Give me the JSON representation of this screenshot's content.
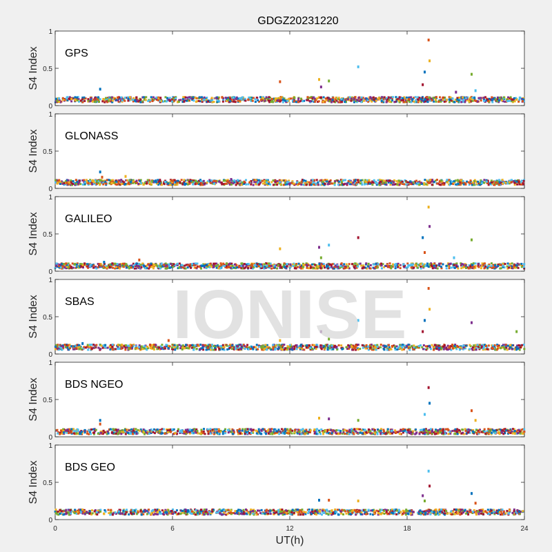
{
  "title": "GDGZ20231220",
  "watermark": "IONISE",
  "chart_data": {
    "type": "scatter",
    "xlabel": "UT(h)",
    "ylabel": "S4 Index",
    "xlim": [
      0,
      24
    ],
    "ylim": [
      0,
      1
    ],
    "xticks": [
      0,
      6,
      12,
      18,
      24
    ],
    "yticks": [
      0,
      0.5,
      1
    ],
    "ytick_labels": [
      "0",
      "0.5",
      "1"
    ],
    "colors": [
      "#0072bd",
      "#d95319",
      "#edb120",
      "#7e2f8e",
      "#77ac30",
      "#4dbeee",
      "#a2142f"
    ],
    "panels": [
      {
        "label": "GPS",
        "baseline": 0.08,
        "spikes": [
          {
            "x": 2.3,
            "y": 0.22
          },
          {
            "x": 11.5,
            "y": 0.32
          },
          {
            "x": 13.5,
            "y": 0.35
          },
          {
            "x": 13.6,
            "y": 0.25
          },
          {
            "x": 14.0,
            "y": 0.33
          },
          {
            "x": 15.5,
            "y": 0.52
          },
          {
            "x": 18.8,
            "y": 0.28
          },
          {
            "x": 18.9,
            "y": 0.45
          },
          {
            "x": 19.1,
            "y": 0.88
          },
          {
            "x": 19.15,
            "y": 0.6
          },
          {
            "x": 20.5,
            "y": 0.18
          },
          {
            "x": 21.3,
            "y": 0.42
          },
          {
            "x": 21.5,
            "y": 0.2
          }
        ]
      },
      {
        "label": "GLONASS",
        "baseline": 0.08,
        "spikes": [
          {
            "x": 2.3,
            "y": 0.22
          },
          {
            "x": 2.4,
            "y": 0.15
          },
          {
            "x": 3.6,
            "y": 0.16
          },
          {
            "x": 9.0,
            "y": 0.12
          }
        ]
      },
      {
        "label": "GALILEO",
        "baseline": 0.07,
        "spikes": [
          {
            "x": 2.5,
            "y": 0.12
          },
          {
            "x": 4.3,
            "y": 0.15
          },
          {
            "x": 11.5,
            "y": 0.3
          },
          {
            "x": 13.5,
            "y": 0.32
          },
          {
            "x": 13.6,
            "y": 0.18
          },
          {
            "x": 14.0,
            "y": 0.35
          },
          {
            "x": 15.5,
            "y": 0.45
          },
          {
            "x": 18.8,
            "y": 0.45
          },
          {
            "x": 18.9,
            "y": 0.25
          },
          {
            "x": 19.1,
            "y": 0.86
          },
          {
            "x": 19.15,
            "y": 0.6
          },
          {
            "x": 21.3,
            "y": 0.42
          },
          {
            "x": 20.4,
            "y": 0.18
          }
        ]
      },
      {
        "label": "SBAS",
        "baseline": 0.09,
        "spikes": [
          {
            "x": 1.4,
            "y": 0.14
          },
          {
            "x": 5.8,
            "y": 0.18
          },
          {
            "x": 11.5,
            "y": 0.18
          },
          {
            "x": 13.6,
            "y": 0.3
          },
          {
            "x": 14.0,
            "y": 0.2
          },
          {
            "x": 15.5,
            "y": 0.45
          },
          {
            "x": 18.8,
            "y": 0.3
          },
          {
            "x": 18.9,
            "y": 0.45
          },
          {
            "x": 19.1,
            "y": 0.88
          },
          {
            "x": 19.15,
            "y": 0.6
          },
          {
            "x": 21.3,
            "y": 0.42
          },
          {
            "x": 23.6,
            "y": 0.3
          }
        ]
      },
      {
        "label": "BDS NGEO",
        "baseline": 0.07,
        "spikes": [
          {
            "x": 2.3,
            "y": 0.22
          },
          {
            "x": 2.3,
            "y": 0.17
          },
          {
            "x": 13.5,
            "y": 0.25
          },
          {
            "x": 14.0,
            "y": 0.24
          },
          {
            "x": 15.5,
            "y": 0.22
          },
          {
            "x": 18.9,
            "y": 0.3
          },
          {
            "x": 19.1,
            "y": 0.66
          },
          {
            "x": 19.15,
            "y": 0.45
          },
          {
            "x": 21.3,
            "y": 0.35
          },
          {
            "x": 21.5,
            "y": 0.22
          }
        ]
      },
      {
        "label": "BDS GEO",
        "baseline": 0.1,
        "spikes": [
          {
            "x": 13.5,
            "y": 0.26
          },
          {
            "x": 14.0,
            "y": 0.26
          },
          {
            "x": 15.5,
            "y": 0.25
          },
          {
            "x": 18.8,
            "y": 0.32
          },
          {
            "x": 18.9,
            "y": 0.25
          },
          {
            "x": 19.1,
            "y": 0.65
          },
          {
            "x": 19.15,
            "y": 0.45
          },
          {
            "x": 21.3,
            "y": 0.35
          },
          {
            "x": 21.5,
            "y": 0.22
          }
        ]
      }
    ]
  }
}
